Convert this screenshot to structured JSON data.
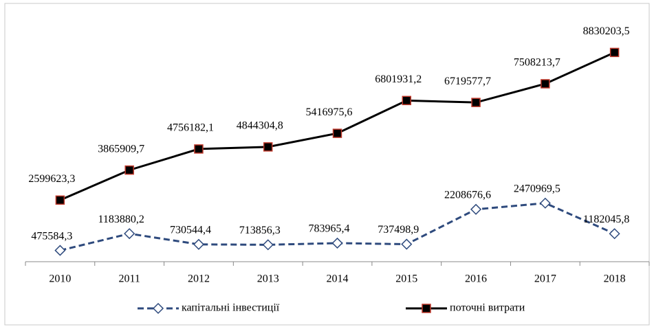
{
  "chart_data": {
    "type": "line",
    "categories": [
      "2010",
      "2011",
      "2012",
      "2013",
      "2014",
      "2015",
      "2016",
      "2017",
      "2018"
    ],
    "series": [
      {
        "name": "капітальні інвестиції",
        "color": "#2e4a7d",
        "marker": "diamond",
        "dashed": true,
        "values": [
          475584.3,
          1183880.2,
          730544.4,
          713856.3,
          783965.4,
          737498.9,
          2208676.6,
          2470969.5,
          1182045.8
        ],
        "value_labels": [
          "475584,3",
          "1183880,2",
          "730544,4",
          "713856,3",
          "783965,4",
          "737498,9",
          "2208676,6",
          "2470969,5",
          "1182045,8"
        ]
      },
      {
        "name": "поточні витрати",
        "color": "#000000",
        "marker": "square",
        "marker_edge": "#c0392b",
        "dashed": false,
        "values": [
          2599623.3,
          3865909.7,
          4756182.1,
          4844304.8,
          5416975.6,
          6801931.2,
          6719577.7,
          7508213.7,
          8830203.5
        ],
        "value_labels": [
          "2599623,3",
          "3865909,7",
          "4756182,1",
          "4844304,8",
          "5416975,6",
          "6801931,2",
          "6719577,7",
          "7508213,7",
          "8830203,5"
        ]
      }
    ],
    "ylim": [
      0,
      10000000
    ],
    "legend": "bottom"
  }
}
